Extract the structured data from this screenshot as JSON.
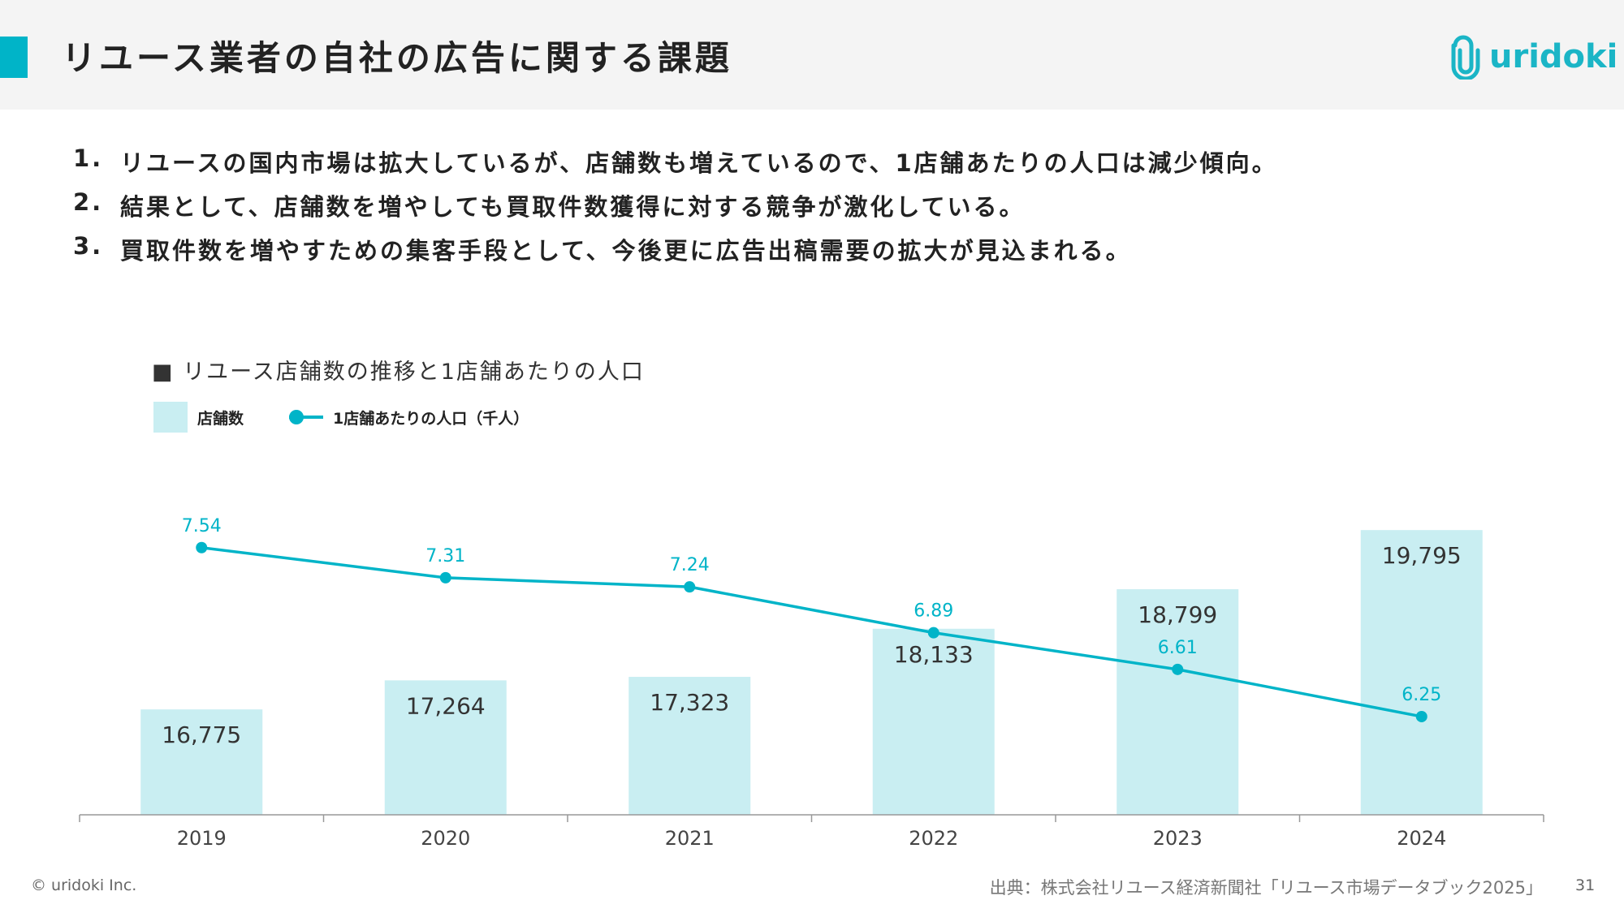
{
  "header": {
    "title": "リユース業者の自社の広告に関する課題",
    "logo_text": "uridoki"
  },
  "points": [
    {
      "num": "1.",
      "text": "リユースの国内市場は拡大しているが、店舗数も増えているので、1店舗あたりの人口は減少傾向。"
    },
    {
      "num": "2.",
      "text": "結果として、店舗数を増やしても買取件数獲得に対する競争が激化している。"
    },
    {
      "num": "3.",
      "text": "買取件数を増やすための集客手段として、今後更に広告出稿需要の拡大が見込まれる。"
    }
  ],
  "chart_data": {
    "type": "bar+line",
    "title": "■ リユース店舗数の推移と1店舗あたりの人口",
    "categories": [
      "2019",
      "2020",
      "2021",
      "2022",
      "2023",
      "2024"
    ],
    "series": [
      {
        "name": "店舗数",
        "type": "bar",
        "values": [
          16775,
          17264,
          17323,
          18133,
          18799,
          19795
        ],
        "labels": [
          "16,775",
          "17,264",
          "17,323",
          "18,133",
          "18,799",
          "19,795"
        ],
        "color": "#c9eef2",
        "axis_range": [
          15000,
          21000
        ]
      },
      {
        "name": "1店舗あたりの人口（千人）",
        "type": "line",
        "values": [
          7.54,
          7.31,
          7.24,
          6.89,
          6.61,
          6.25
        ],
        "labels": [
          "7.54",
          "7.31",
          "7.24",
          "6.89",
          "6.61",
          "6.25"
        ],
        "color": "#00b4c8",
        "axis_range": [
          5.5,
          8.22
        ]
      }
    ],
    "legend_position": "top-left",
    "grid": false
  },
  "footer": {
    "copyright": "© uridoki Inc.",
    "source": "出典：株式会社リユース経済新聞社「リユース市場データブック2025」",
    "page": "31"
  },
  "colors": {
    "accent": "#00b4c8",
    "bar": "#c9eef2",
    "header_bg": "#f4f4f4"
  }
}
